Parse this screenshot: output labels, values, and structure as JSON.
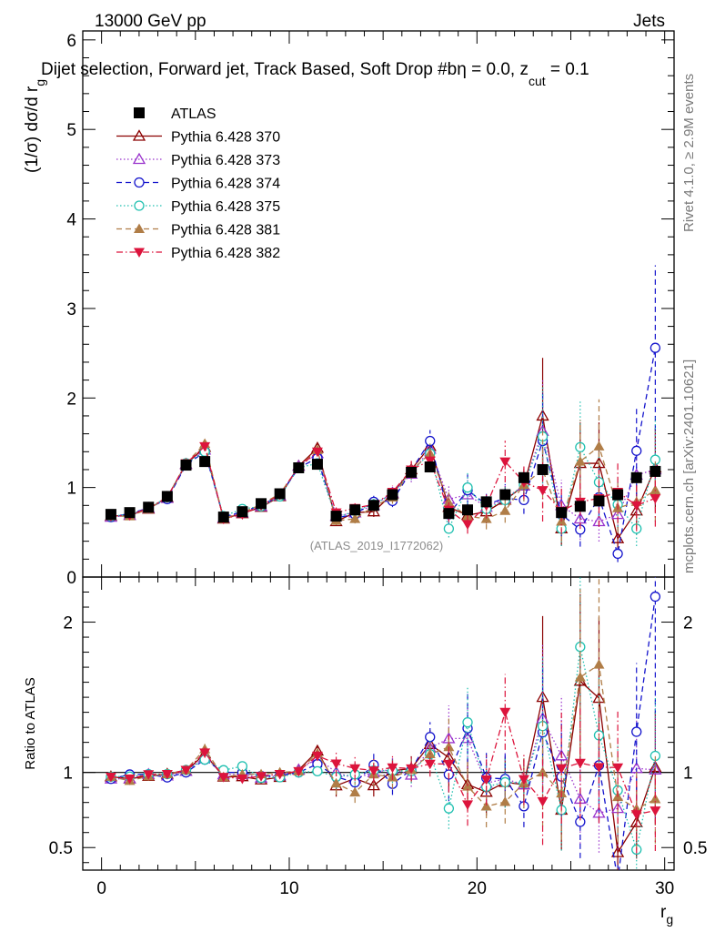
{
  "header": {
    "left": "13000 GeV pp",
    "right": "Jets"
  },
  "chart_data": {
    "type": "scatter",
    "title": "Dijet selection, Forward jet, Track Based, Soft Drop #b",
    "title_suffix": "η = 0.0, z",
    "title_sub": "cut",
    "title_end": " = 0.1",
    "ylabel": "(1/σ) dσ/d r",
    "ylabel_sub": "g",
    "ratio_ylabel": "Ratio to ATLAS",
    "xlabel": "r",
    "xlabel_sub": "g",
    "xlim": [
      -1,
      30.5
    ],
    "ylim": [
      0,
      6.1
    ],
    "ratio_ylim": [
      0.35,
      2.3
    ],
    "xticks": [
      "0",
      "10",
      "20",
      "30"
    ],
    "yticks": [
      "0",
      "1",
      "2",
      "3",
      "4",
      "5",
      "6"
    ],
    "ratio_yticks": [
      "0.5",
      "1",
      "2"
    ],
    "analysis_label": "(ATLAS_2019_I1772062)",
    "side_label_top": "Rivet 4.1.0, ≥ 2.9M events",
    "side_label_bottom": "mcplots.cern.ch [arXiv:2401.10621]",
    "x": [
      0.5,
      1.5,
      2.5,
      3.5,
      4.5,
      5.5,
      6.5,
      7.5,
      8.5,
      9.5,
      10.5,
      11.5,
      12.5,
      13.5,
      14.5,
      15.5,
      16.5,
      17.5,
      18.5,
      19.5,
      20.5,
      21.5,
      22.5,
      23.5,
      24.5,
      25.5,
      26.5,
      27.5,
      28.5,
      29.5
    ],
    "series": [
      {
        "name": "ATLAS",
        "style": "data",
        "color": "#000000",
        "values": [
          0.7,
          0.72,
          0.78,
          0.9,
          1.25,
          1.29,
          0.67,
          0.73,
          0.82,
          0.93,
          1.22,
          1.26,
          0.68,
          0.75,
          0.8,
          0.92,
          1.17,
          1.23,
          0.71,
          0.75,
          0.84,
          0.92,
          1.11,
          1.2,
          0.72,
          0.79,
          0.85,
          0.92,
          1.11,
          1.18
        ]
      },
      {
        "name": "Pythia 6.428 370",
        "style": "line",
        "marker": "triangle-open",
        "color": "#8b0000",
        "values": [
          0.68,
          0.69,
          0.76,
          0.89,
          1.26,
          1.45,
          0.65,
          0.71,
          0.78,
          0.9,
          1.24,
          1.44,
          0.62,
          0.72,
          0.73,
          0.93,
          1.2,
          1.46,
          0.78,
          0.69,
          0.73,
          0.86,
          1.02,
          1.8,
          0.54,
          1.27,
          1.27,
          0.43,
          0.74,
          1.22
        ]
      },
      {
        "name": "Pythia 6.428 373",
        "style": "dotted",
        "marker": "triangle-open",
        "color": "#9932cc",
        "values": [
          0.67,
          0.69,
          0.77,
          0.88,
          1.26,
          1.42,
          0.66,
          0.72,
          0.79,
          0.91,
          1.24,
          1.38,
          0.68,
          0.72,
          0.8,
          0.94,
          1.15,
          1.43,
          0.87,
          0.92,
          0.78,
          0.88,
          1.02,
          1.63,
          0.8,
          0.65,
          0.62,
          0.7,
          1.14,
          1.2
        ]
      },
      {
        "name": "Pythia 6.428 374",
        "style": "dashed",
        "marker": "circle-open",
        "color": "#1414cc",
        "values": [
          0.67,
          0.71,
          0.77,
          0.87,
          1.25,
          1.4,
          0.67,
          0.73,
          0.8,
          0.91,
          1.22,
          1.33,
          0.66,
          0.7,
          0.84,
          0.85,
          1.19,
          1.52,
          0.7,
          0.97,
          0.81,
          0.88,
          0.86,
          1.52,
          0.7,
          0.53,
          0.89,
          0.26,
          1.41,
          2.56
        ]
      },
      {
        "name": "Pythia 6.428 375",
        "style": "dotted",
        "marker": "circle-open",
        "color": "#20c0b0",
        "values": [
          0.68,
          0.7,
          0.77,
          0.89,
          1.27,
          1.4,
          0.68,
          0.76,
          0.79,
          0.9,
          1.22,
          1.27,
          0.66,
          0.74,
          0.81,
          0.93,
          1.18,
          1.38,
          0.54,
          1.0,
          0.76,
          0.86,
          1.03,
          1.57,
          0.54,
          1.45,
          1.06,
          0.81,
          0.54,
          1.31
        ]
      },
      {
        "name": "Pythia 6.428 381",
        "style": "dashed",
        "marker": "triangle-filled",
        "color": "#b07d47",
        "values": [
          0.68,
          0.68,
          0.76,
          0.89,
          1.27,
          1.49,
          0.65,
          0.72,
          0.81,
          0.93,
          1.23,
          1.42,
          0.63,
          0.65,
          0.79,
          0.89,
          1.19,
          1.38,
          0.83,
          0.68,
          0.65,
          0.74,
          1.03,
          1.2,
          0.62,
          1.29,
          1.46,
          0.77,
          0.84,
          0.97
        ]
      },
      {
        "name": "Pythia 6.428 382",
        "style": "dashdot",
        "marker": "triangle-down-filled",
        "color": "#dc143c",
        "values": [
          0.68,
          0.69,
          0.77,
          0.89,
          1.27,
          1.46,
          0.65,
          0.7,
          0.8,
          0.92,
          1.23,
          1.4,
          0.72,
          0.77,
          0.81,
          0.95,
          1.2,
          1.3,
          0.75,
          0.59,
          0.8,
          1.29,
          1.06,
          0.97,
          0.74,
          0.84,
          0.88,
          0.95,
          0.8,
          0.88
        ]
      }
    ]
  }
}
